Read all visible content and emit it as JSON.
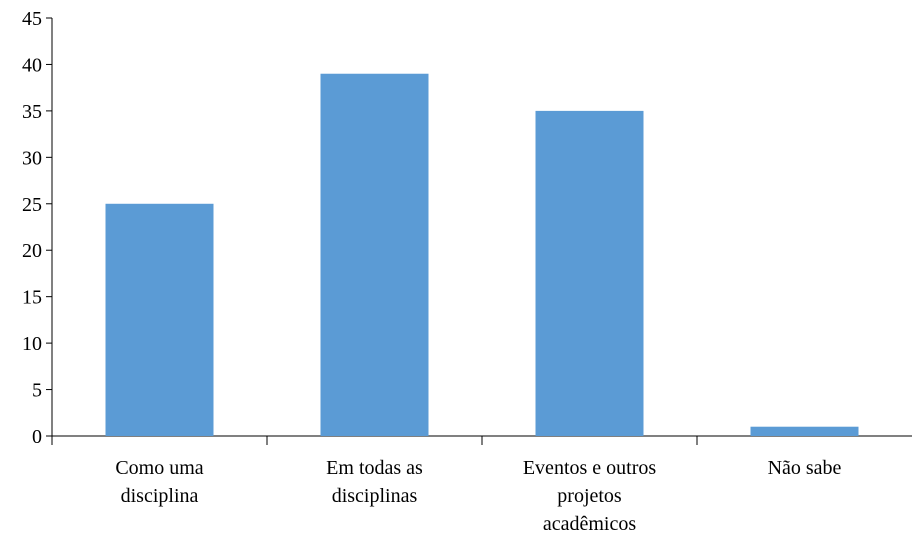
{
  "chart_data": {
    "type": "bar",
    "categories": [
      [
        "Como uma",
        "disciplina"
      ],
      [
        "Em todas as",
        "disciplinas"
      ],
      [
        "Eventos e outros",
        "projetos",
        "acadêmicos"
      ],
      [
        "Não sabe"
      ]
    ],
    "values": [
      25,
      39,
      35,
      1
    ],
    "yticks": [
      "0",
      "5",
      "10",
      "15",
      "20",
      "25",
      "30",
      "35",
      "40",
      "45"
    ],
    "ylim": [
      0,
      45
    ],
    "title": "",
    "xlabel": "",
    "ylabel": "",
    "grid": false,
    "legend": "none",
    "bar_color": "#5b9bd5",
    "axis_color": "#000000"
  }
}
